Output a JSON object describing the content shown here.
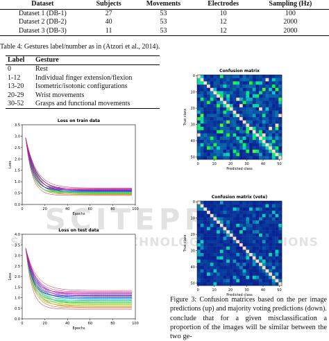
{
  "table3": {
    "header": [
      "Dataset",
      "Subjects",
      "Movements",
      "Electrodes",
      "Sampling (Hz)"
    ],
    "rows": [
      [
        "Dataset 1 (DB-1)",
        "27",
        "53",
        "10",
        "100"
      ],
      [
        "Dataset 2 (DB-2)",
        "40",
        "53",
        "12",
        "2000"
      ],
      [
        "Dataset 3 (DB-3)",
        "11",
        "53",
        "12",
        "2000"
      ]
    ]
  },
  "table4": {
    "caption": "Table 4: Gestures label/number as in (Atzori et al., 2014).",
    "header": [
      "Label",
      "Gesture"
    ],
    "rows": [
      [
        "0",
        "Rest"
      ],
      [
        "1-12",
        "Individual finger extension/flexion"
      ],
      [
        "13-20",
        "Isometric/isotonic configurations"
      ],
      [
        "20-29",
        "Wrist movements"
      ],
      [
        "30-52",
        "Grasps and functional movements"
      ]
    ]
  },
  "loss_train": {
    "title": "Loss on train data",
    "xlabel": "Epochs",
    "ylabel": "Loss",
    "xticks": [
      "0",
      "20",
      "40",
      "60",
      "80",
      "100"
    ],
    "yticks": [
      "0.0",
      "0.5",
      "1.0",
      "1.5",
      "2.0",
      "2.5",
      "3.0",
      "3.5"
    ]
  },
  "loss_test": {
    "title": "Loss on test data",
    "xlabel": "Epochs",
    "ylabel": "Loss",
    "xticks": [
      "0",
      "20",
      "40",
      "60",
      "80",
      "100"
    ],
    "yticks": [
      "0.0",
      "0.5",
      "1.0",
      "1.5",
      "2.0",
      "2.5",
      "3.0",
      "3.5",
      "4.0"
    ]
  },
  "cm1": {
    "title": "Confusion matrix",
    "xlabel": "Predicted class",
    "ylabel": "True class",
    "xticks": [
      "0",
      "10",
      "20",
      "30",
      "40",
      "50"
    ],
    "yticks": [
      "0",
      "10",
      "20",
      "30",
      "40",
      "50"
    ]
  },
  "cm2": {
    "title": "Confusion matrix (vote)",
    "xlabel": "Predicted class",
    "ylabel": "True class",
    "xticks": [
      "0",
      "10",
      "20",
      "30",
      "40",
      "50"
    ],
    "yticks": [
      "0",
      "10",
      "20",
      "30",
      "40",
      "50"
    ]
  },
  "figure3_caption": "Figure 3: Confusion matrices based on the per image predictions (up) and majority voting predictions (down).",
  "body_text": "conclude that for a given misclassification a proportion of the images will be similar between the two ge-",
  "watermark": {
    "line1": "SCITEPRESS",
    "line2": "SCIENCE AND TECHNOLOGY PUBLICATIONS"
  }
}
